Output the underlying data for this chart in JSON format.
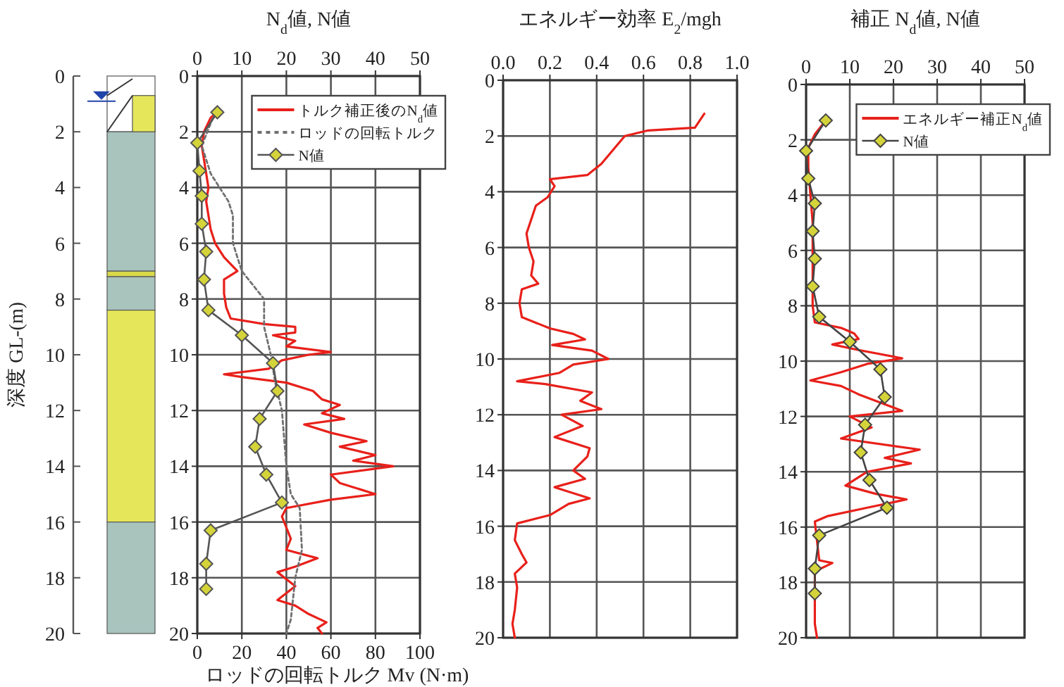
{
  "chart_data": [
    {
      "type": "bar",
      "stacked": true,
      "ylabel": "深度 GL-(m)",
      "ylim": [
        20,
        0
      ],
      "yticks": [
        0,
        2,
        4,
        6,
        8,
        10,
        12,
        14,
        16,
        18,
        20
      ],
      "categories": [
        null
      ],
      "ref_lines": [
        {
          "axis": "y",
          "value": 0.9,
          "color": "#2244aa"
        }
      ],
      "series": [
        {
          "color": "#ffffff",
          "values": [
            2
          ]
        },
        {
          "color": "#a9c3bd",
          "values": [
            5
          ]
        },
        {
          "color": "#d8d84a",
          "values": [
            0.2
          ]
        },
        {
          "color": "#a9c3bd",
          "values": [
            1.2
          ]
        },
        {
          "color": "#e6e65a",
          "values": [
            7.6
          ]
        },
        {
          "color": "#a9c3bd",
          "values": [
            4
          ]
        }
      ]
    },
    {
      "type": "line",
      "x2label": "N$_{d}$値, N値",
      "xlabel": "ロッドの回転トルク Mv (N·m)",
      "x2lim": [
        0,
        50
      ],
      "x2ticks": [
        0,
        10,
        20,
        30,
        40,
        50
      ],
      "xlim": [
        0,
        100
      ],
      "xticks": [
        0,
        20,
        40,
        60,
        80,
        100
      ],
      "ylim": [
        20,
        0
      ],
      "yticks": [
        0,
        2,
        4,
        6,
        8,
        10,
        12,
        14,
        16,
        18,
        20
      ],
      "grid": true,
      "legend": "top right",
      "series": [
        {
          "name": "トルク補正後のN$_{d}$値",
          "color": "#e8201a",
          "axis": "x2",
          "x": [
            5,
            3,
            1.5,
            1,
            1.5,
            2,
            2.5,
            2,
            2.5,
            3,
            4,
            6,
            9,
            6,
            6,
            6.5,
            7.5,
            15,
            22,
            22,
            17,
            22,
            20,
            30,
            25,
            19,
            16,
            6,
            10,
            20,
            26,
            28,
            32,
            28,
            33,
            24,
            30,
            38,
            32,
            40,
            35,
            44,
            30,
            32,
            40,
            30,
            20,
            19,
            20,
            21,
            20,
            27,
            22,
            18,
            22,
            18,
            22,
            25,
            29,
            27,
            28
          ],
          "values": [
            1.2,
            1.5,
            2,
            2.5,
            3,
            3.5,
            4,
            4.5,
            5,
            5.5,
            6,
            6.5,
            7,
            7.3,
            7.8,
            8.3,
            8.7,
            8.9,
            9,
            9.2,
            9.3,
            9.5,
            9.7,
            9.9,
            10,
            10.2,
            10.5,
            10.7,
            10.8,
            11,
            11.3,
            11.6,
            11.8,
            12.1,
            12.3,
            12.5,
            12.8,
            13.1,
            13.3,
            13.6,
            13.8,
            14,
            14.3,
            14.6,
            15,
            15.2,
            15.5,
            15.8,
            16.2,
            16.6,
            17,
            17.3,
            17.6,
            17.8,
            18.3,
            18.8,
            19,
            19.3,
            19.6,
            19.8,
            20
          ]
        },
        {
          "name": "ロッドの回転トルク",
          "color": "#707070",
          "line_style": "dashed",
          "x": [
            8,
            2,
            6,
            14,
            16,
            16,
            20,
            30,
            30,
            30,
            33,
            35,
            38,
            40,
            42,
            46,
            47,
            44,
            42,
            40
          ],
          "values": [
            1.3,
            2.5,
            3.5,
            4.5,
            5,
            6,
            7,
            8,
            8.2,
            9,
            10,
            11,
            12,
            14,
            15,
            15.5,
            17,
            18,
            19.5,
            20
          ]
        },
        {
          "name": "N値",
          "color": "#555555",
          "axis": "x2",
          "marker": "diamond",
          "x": [
            4.5,
            0,
            0.5,
            1,
            1,
            2,
            1.5,
            2.5,
            10,
            17,
            18,
            14,
            13,
            15.5,
            19,
            3,
            2,
            2
          ],
          "values": [
            1.3,
            2.4,
            3.4,
            4.3,
            5.3,
            6.3,
            7.3,
            8.4,
            9.3,
            10.3,
            11.3,
            12.3,
            13.3,
            14.3,
            15.3,
            16.3,
            17.5,
            18.4
          ]
        }
      ]
    },
    {
      "type": "line",
      "xlabel": "エネルギー効率 E$_{2}$/mgh",
      "xlim": [
        0,
        1
      ],
      "xticks": [
        {
          "value": 0,
          "label": "0.0"
        },
        {
          "value": 0.2,
          "label": "0.2"
        },
        {
          "value": 0.4,
          "label": "0.4"
        },
        {
          "value": 0.6,
          "label": "0.6"
        },
        {
          "value": 0.8,
          "label": "0.8"
        },
        {
          "value": 1,
          "label": "1.0"
        }
      ],
      "ylim": [
        20,
        0
      ],
      "yticks": [
        0,
        2,
        4,
        6,
        8,
        10,
        12,
        14,
        16,
        18,
        20
      ],
      "grid": true,
      "series": [
        {
          "color": "#e8201a",
          "x": [
            0.86,
            0.82,
            0.62,
            0.52,
            0.47,
            0.42,
            0.36,
            0.2,
            0.22,
            0.19,
            0.14,
            0.12,
            0.1,
            0.11,
            0.13,
            0.12,
            0.15,
            0.08,
            0.07,
            0.08,
            0.2,
            0.3,
            0.35,
            0.21,
            0.38,
            0.45,
            0.3,
            0.24,
            0.06,
            0.18,
            0.38,
            0.33,
            0.42,
            0.25,
            0.34,
            0.22,
            0.37,
            0.36,
            0.3,
            0.35,
            0.22,
            0.37,
            0.28,
            0.2,
            0.06,
            0.05,
            0.08,
            0.1,
            0.05,
            0.06,
            0.05,
            0.04,
            0.05
          ],
          "values": [
            1.2,
            1.7,
            1.8,
            2,
            2.5,
            3,
            3.4,
            3.55,
            3.8,
            4.2,
            4.5,
            5,
            5.5,
            6,
            6.5,
            7,
            7.3,
            7.5,
            8,
            8.5,
            8.9,
            9.1,
            9.3,
            9.5,
            9.7,
            10,
            10.2,
            10.5,
            10.8,
            10.9,
            11.2,
            11.5,
            11.8,
            12,
            12.4,
            12.8,
            13.2,
            13.5,
            14,
            14.3,
            14.6,
            15,
            15.2,
            15.6,
            15.9,
            16.5,
            17,
            17.3,
            17.7,
            18.2,
            19,
            19.5,
            20
          ]
        }
      ]
    },
    {
      "type": "line",
      "xlabel": "補正 N$_{d}$値, N値",
      "xlim": [
        0,
        50
      ],
      "xticks": [
        0,
        10,
        20,
        30,
        40,
        50
      ],
      "ylim": [
        20,
        0
      ],
      "yticks": [
        0,
        2,
        4,
        6,
        8,
        10,
        12,
        14,
        16,
        18,
        20
      ],
      "grid": true,
      "legend": "top right",
      "series": [
        {
          "name": "エネルギー補正N$_{d}$値",
          "color": "#e8201a",
          "x": [
            5,
            2,
            0.5,
            0.5,
            1,
            1.5,
            1.5,
            1.5,
            1.5,
            2,
            8,
            11,
            12,
            6,
            12,
            22,
            14,
            8,
            1,
            8,
            12,
            17,
            22,
            10,
            15,
            8,
            26,
            18,
            24,
            14,
            9,
            16,
            23,
            14,
            5,
            2,
            2.5,
            3,
            6,
            2,
            2,
            2,
            2,
            2.5
          ],
          "values": [
            1.2,
            1.8,
            2.3,
            3,
            4,
            5,
            6,
            7,
            8,
            8.6,
            8.8,
            9,
            9.2,
            9.4,
            9.6,
            9.9,
            10.1,
            10.4,
            10.7,
            10.9,
            11.2,
            11.5,
            11.8,
            12,
            12.4,
            12.8,
            13.2,
            13.5,
            13.7,
            14,
            14.5,
            14.8,
            15,
            15.3,
            15.6,
            15.8,
            16.5,
            17.2,
            17.3,
            17.6,
            18.3,
            19,
            19.5,
            20
          ]
        },
        {
          "name": "N値",
          "color": "#444444",
          "marker": "diamond",
          "x": [
            4.5,
            0,
            0.5,
            2,
            1.5,
            2,
            1.5,
            3,
            10,
            17,
            18,
            13.5,
            12.5,
            14.5,
            18.5,
            3,
            2,
            2
          ],
          "values": [
            1.3,
            2.4,
            3.4,
            4.3,
            5.3,
            6.3,
            7.3,
            8.4,
            9.3,
            10.3,
            11.3,
            12.3,
            13.3,
            14.3,
            15.3,
            16.3,
            17.5,
            18.4
          ]
        }
      ]
    }
  ]
}
